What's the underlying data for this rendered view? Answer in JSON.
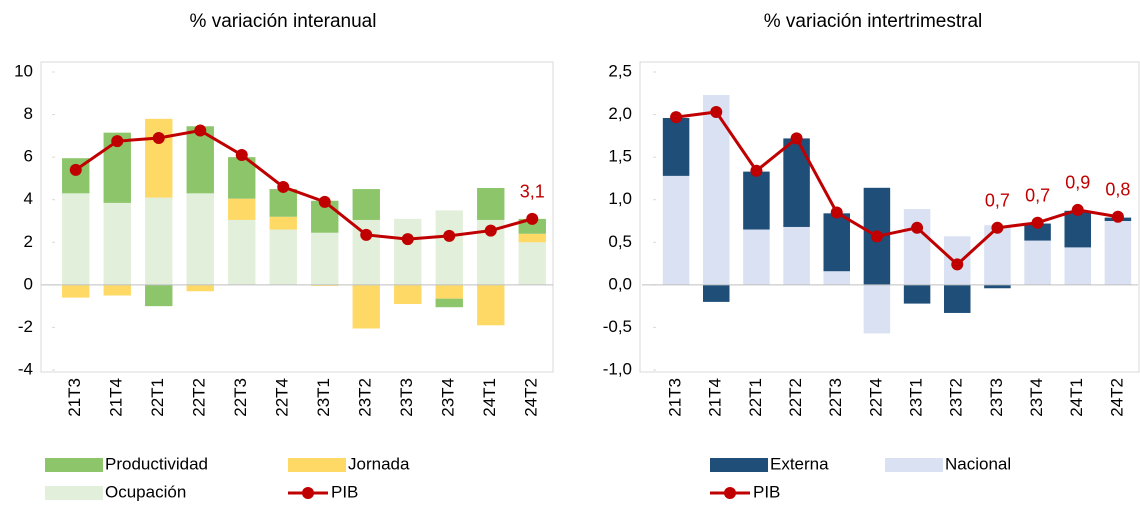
{
  "chart_data": [
    {
      "type": "bar",
      "stacked": true,
      "title": "% variación interanual",
      "categories": [
        "21T3",
        "21T4",
        "22T1",
        "22T2",
        "22T3",
        "22T4",
        "23T1",
        "23T2",
        "23T3",
        "23T4",
        "24T1",
        "24T2"
      ],
      "ylim": [
        -4,
        10
      ],
      "yticks": [
        -4,
        -2,
        0,
        2,
        4,
        6,
        8,
        10
      ],
      "series": [
        {
          "name": "Ocupación",
          "color": "#e2efda",
          "values": [
            4.3,
            3.85,
            4.1,
            4.3,
            3.05,
            2.6,
            2.45,
            3.05,
            3.1,
            3.5,
            3.05,
            2.0
          ]
        },
        {
          "name": "Jornada",
          "color": "#ffd966",
          "values": [
            -0.6,
            -0.5,
            3.7,
            -0.3,
            1.0,
            0.6,
            -0.05,
            -2.05,
            -0.9,
            -0.65,
            -1.9,
            0.4
          ]
        },
        {
          "name": "Productividad",
          "color": "#8cc56a",
          "values": [
            1.65,
            3.3,
            -1.0,
            3.15,
            1.95,
            1.3,
            1.5,
            1.45,
            0,
            -0.4,
            1.5,
            0.7
          ]
        },
        {
          "name": "PIB",
          "type": "line",
          "color": "#c00000",
          "values": [
            5.4,
            6.75,
            6.9,
            7.25,
            6.1,
            4.6,
            3.9,
            2.35,
            2.15,
            2.3,
            2.55,
            3.1
          ],
          "value_labels": [
            null,
            null,
            null,
            null,
            null,
            null,
            null,
            null,
            null,
            null,
            null,
            "3,1"
          ]
        }
      ]
    },
    {
      "type": "bar",
      "stacked": true,
      "title": "% variación intertrimestral",
      "categories": [
        "21T3",
        "21T4",
        "22T1",
        "22T2",
        "22T3",
        "22T4",
        "23T1",
        "23T2",
        "23T3",
        "23T4",
        "24T1",
        "24T2"
      ],
      "ylim": [
        -1.0,
        2.5
      ],
      "yticks": [
        {
          "value": -1.0,
          "label": "-1,0"
        },
        {
          "value": -0.5,
          "label": "-0,5"
        },
        {
          "value": 0,
          "label": "0,0"
        },
        {
          "value": 0.5,
          "label": "0,5"
        },
        {
          "value": 1.0,
          "label": "1,0"
        },
        {
          "value": 1.5,
          "label": "1,5"
        },
        {
          "value": 2.0,
          "label": "2,0"
        },
        {
          "value": 2.5,
          "label": "2,5"
        }
      ],
      "series": [
        {
          "name": "Nacional",
          "color": "#d9e1f2",
          "values": [
            1.28,
            2.23,
            0.65,
            0.68,
            0.16,
            -0.57,
            0.89,
            0.57,
            0.7,
            0.52,
            0.44,
            0.75
          ]
        },
        {
          "name": "Externa",
          "color": "#1f4e79",
          "values": [
            0.68,
            -0.2,
            0.68,
            1.04,
            0.68,
            1.14,
            -0.22,
            -0.33,
            -0.04,
            0.2,
            0.43,
            0.04
          ]
        },
        {
          "name": "PIB",
          "type": "line",
          "color": "#c00000",
          "values": [
            1.97,
            2.03,
            1.34,
            1.72,
            0.85,
            0.57,
            0.67,
            0.24,
            0.67,
            0.73,
            0.88,
            0.8
          ],
          "value_labels": [
            null,
            null,
            null,
            null,
            null,
            null,
            null,
            null,
            "0,7",
            "0,7",
            "0,9",
            "0,8"
          ]
        }
      ]
    }
  ]
}
